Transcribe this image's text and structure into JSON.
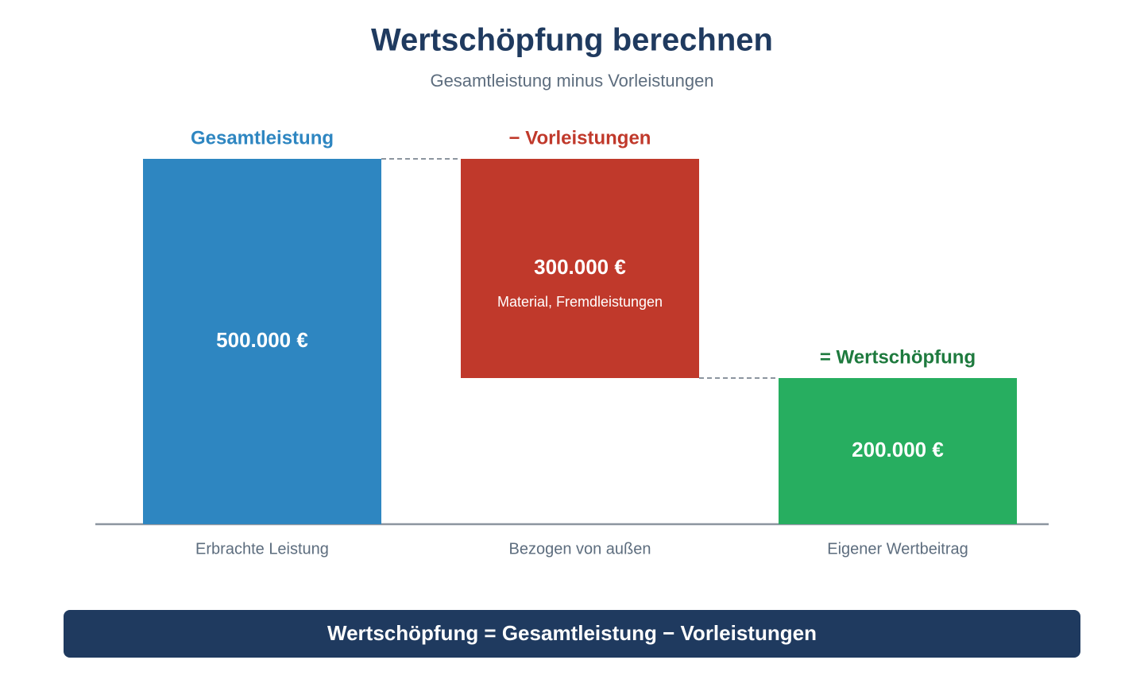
{
  "chart_data": {
    "type": "waterfall",
    "title": "Wertschöpfung berechnen",
    "subtitle": "Gesamtleistung minus Vorleistungen",
    "categories": [
      "Erbrachte Leistung",
      "Bezogen von außen",
      "Eigener Wertbeitrag"
    ],
    "labels": [
      "Gesamtleistung",
      "− Vorleistungen",
      "= Wertschöpfung"
    ],
    "label_colors": [
      "#2e86c1",
      "#c0392b",
      "#1e7a3e"
    ],
    "measures": [
      "absolute",
      "decrease",
      "total"
    ],
    "values": [
      500000,
      300000,
      200000
    ],
    "value_labels": [
      "500.000 €",
      "300.000 €",
      "200.000 €"
    ],
    "notes": [
      null,
      "Material, Fremdleistungen",
      null
    ],
    "colors": [
      "#2e86c1",
      "#c0392b",
      "#27ae60"
    ],
    "formula": "Wertschöpfung = Gesamtleistung − Vorleistungen"
  }
}
